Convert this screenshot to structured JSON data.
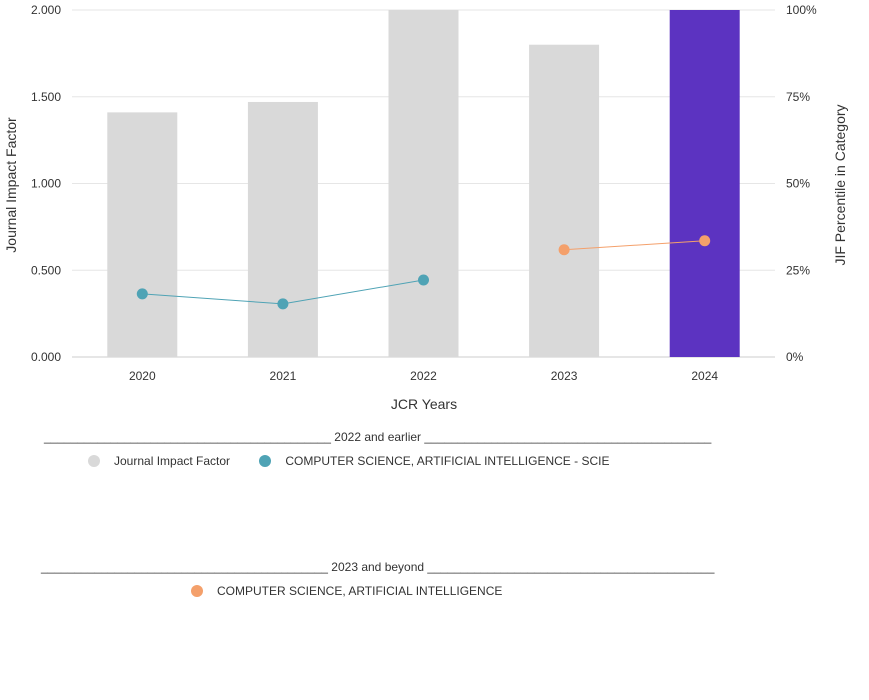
{
  "chart_data": {
    "type": "bar",
    "categories": [
      "2020",
      "2021",
      "2022",
      "2023",
      "2024"
    ],
    "bar_series": {
      "name": "Journal Impact Factor",
      "values": [
        1.41,
        1.47,
        2.0,
        1.8,
        2.0
      ],
      "color": "#d9d9d9",
      "highlight_color": "#5c33c1",
      "highlight_category": "2024"
    },
    "line_series": [
      {
        "name": "COMPUTER SCIENCE, ARTIFICIAL INTELLIGENCE - SCIE",
        "categories": [
          "2020",
          "2021",
          "2022"
        ],
        "values": [
          18.2,
          15.3,
          22.2
        ],
        "color": "#4fa3b5"
      },
      {
        "name": "COMPUTER SCIENCE, ARTIFICIAL INTELLIGENCE",
        "categories": [
          "2023",
          "2024"
        ],
        "values": [
          30.9,
          33.5
        ],
        "color": "#f4a06b"
      }
    ],
    "xlabel": "JCR Years",
    "ylabel": "Journal Impact Factor",
    "y2label": "JIF Percentile in Category",
    "ylim": [
      0,
      2.0
    ],
    "y2lim": [
      0,
      100
    ],
    "yticks": [
      "0.000",
      "0.500",
      "1.000",
      "1.500",
      "2.000"
    ],
    "y2ticks": [
      "0%",
      "25%",
      "50%",
      "75%",
      "100%"
    ],
    "grid": true
  },
  "legend": {
    "group1_header": "___________________________________________ 2022 and earlier ___________________________________________",
    "group1_items": [
      {
        "label": "Journal Impact Factor",
        "color": "#d9d9d9"
      },
      {
        "label": "COMPUTER SCIENCE, ARTIFICIAL INTELLIGENCE - SCIE",
        "color": "#4fa3b5"
      }
    ],
    "group2_header": "___________________________________________ 2023 and beyond ___________________________________________",
    "group2_items": [
      {
        "label": "COMPUTER SCIENCE, ARTIFICIAL INTELLIGENCE",
        "color": "#f4a06b"
      }
    ]
  }
}
